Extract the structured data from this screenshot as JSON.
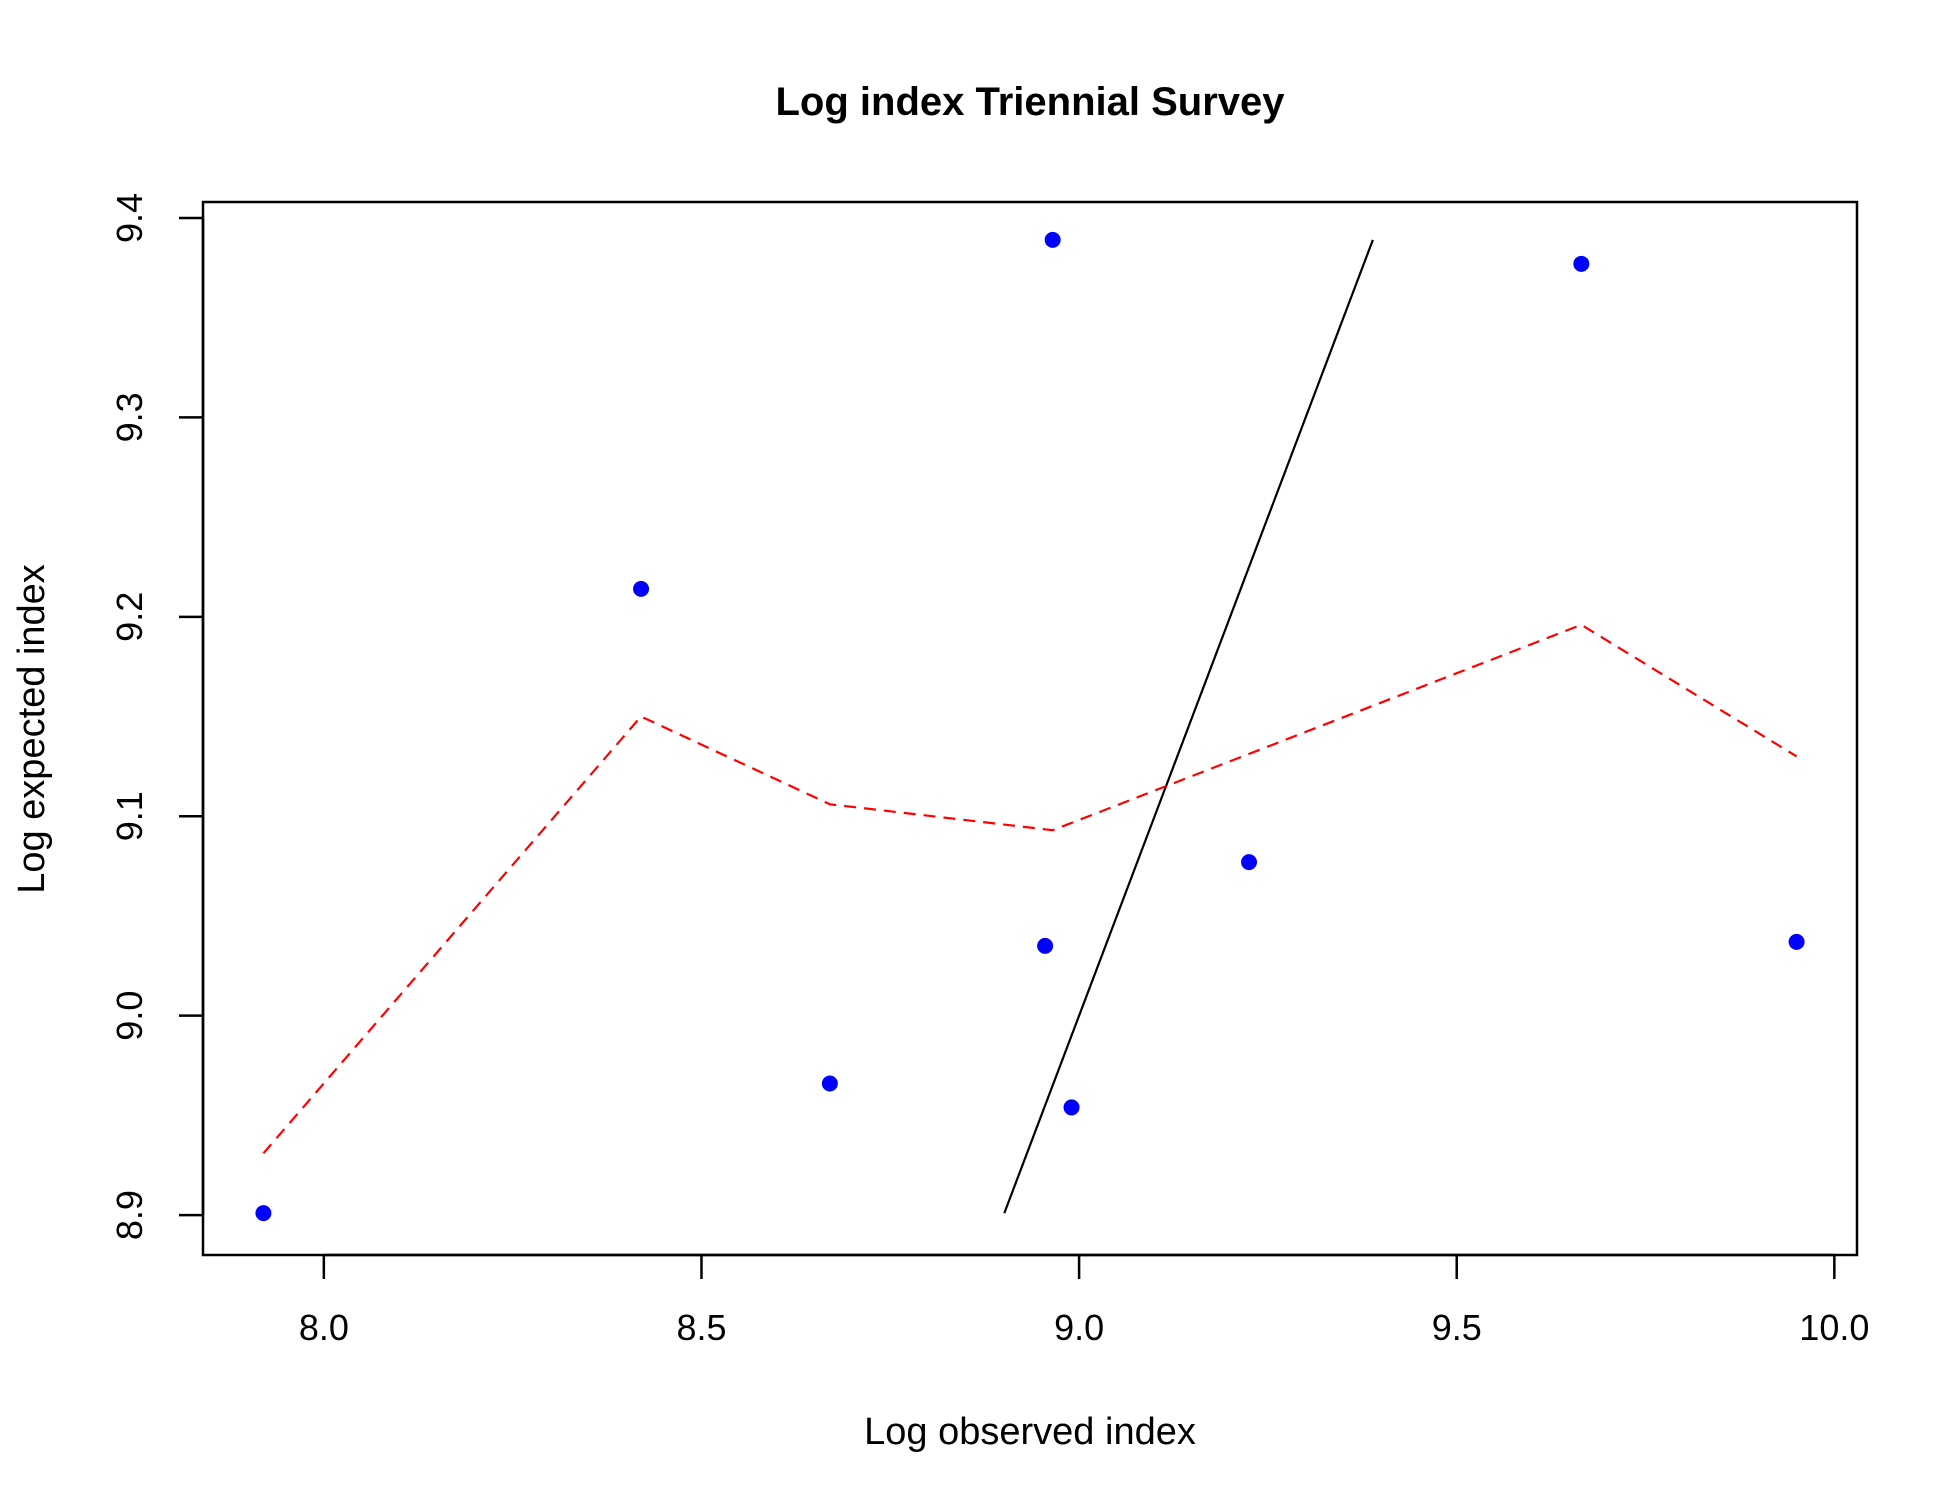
{
  "chart_data": {
    "type": "scatter",
    "title": "Log index Triennial Survey",
    "xlabel": "Log observed index",
    "ylabel": "Log expected index",
    "xlim": [
      7.84,
      10.03
    ],
    "ylim": [
      8.88,
      9.408
    ],
    "xticks": [
      "8.0",
      "8.5",
      "9.0",
      "9.5",
      "10.0"
    ],
    "yticks": [
      "8.9",
      "9.0",
      "9.1",
      "9.2",
      "9.3",
      "9.4"
    ],
    "grid": false,
    "points": {
      "color": "#0000ff",
      "x": [
        7.92,
        8.42,
        8.67,
        8.955,
        8.965,
        8.99,
        9.225,
        9.665,
        9.95
      ],
      "y": [
        8.901,
        9.214,
        8.966,
        9.035,
        9.389,
        8.954,
        9.077,
        9.377,
        9.037
      ]
    },
    "identity_line": {
      "color": "#000000",
      "x": [
        8.901,
        9.389
      ],
      "y": [
        8.901,
        9.389
      ]
    },
    "smooth_line": {
      "color": "#ff0000",
      "style": "dashed",
      "x": [
        7.92,
        8.42,
        8.67,
        8.965,
        9.665,
        9.95
      ],
      "y": [
        8.931,
        9.15,
        9.106,
        9.093,
        9.196,
        9.13
      ]
    }
  }
}
